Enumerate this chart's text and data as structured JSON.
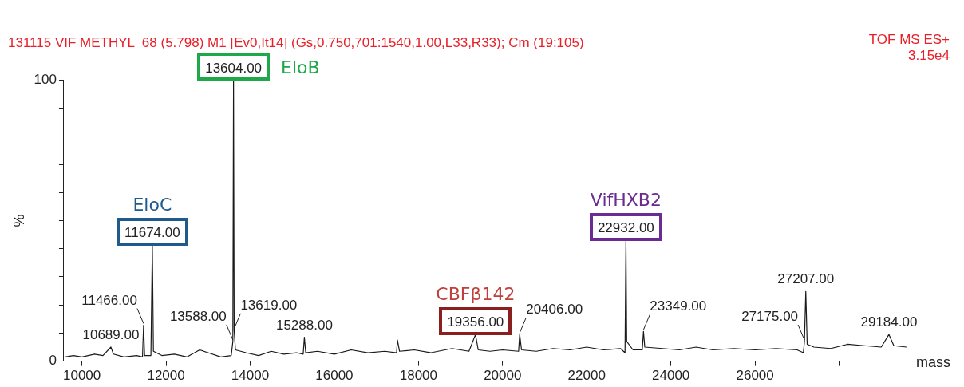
{
  "chart_data": {
    "type": "line",
    "title": "131115 VIF METHYL  68 (5.798) M1 [Ev0,It14] (Gs,0.750,701:1540,1.00,L33,R33); Cm (19:105)",
    "xlabel": "mass",
    "ylabel": "%",
    "xlim": [
      9570,
      29640
    ],
    "xticks": [
      10000,
      12000,
      14000,
      16000,
      18000,
      20000,
      22000,
      24000,
      26000,
      {
        "value": 28000,
        "label": null
      }
    ],
    "ylim": [
      0,
      100
    ],
    "yticks": [
      0,
      {
        "value": 10,
        "label": null
      },
      {
        "value": 20,
        "label": null
      },
      {
        "value": 30,
        "label": null
      },
      {
        "value": 40,
        "label": null
      },
      {
        "value": 50,
        "label": null
      },
      {
        "value": 60,
        "label": null
      },
      {
        "value": 70,
        "label": null
      },
      {
        "value": 80,
        "label": null
      },
      {
        "value": 90,
        "label": null
      },
      100
    ],
    "grid": false,
    "legend": false,
    "marker": "none",
    "x": [
      9600,
      9800,
      10000,
      10300,
      10500,
      10689,
      10750,
      11000,
      11300,
      11440,
      11466,
      11490,
      11640,
      11674,
      11700,
      11900,
      12200,
      12500,
      12800,
      13000,
      13300,
      13550,
      13588,
      13604,
      13619,
      13650,
      13900,
      14200,
      14500,
      14800,
      15100,
      15260,
      15288,
      15320,
      15600,
      16000,
      16400,
      16800,
      17200,
      17480,
      17500,
      17550,
      17900,
      18300,
      18800,
      19200,
      19356,
      19420,
      19700,
      20000,
      20380,
      20406,
      20450,
      20800,
      21200,
      21600,
      22000,
      22400,
      22800,
      22910,
      22932,
      22950,
      23100,
      23320,
      23349,
      23380,
      23800,
      24200,
      24600,
      25000,
      25500,
      26000,
      26500,
      27000,
      27150,
      27175,
      27207,
      27240,
      27400,
      27800,
      28200,
      28600,
      29000,
      29184,
      29300,
      29600
    ],
    "series": [
      {
        "color": "#1a1a1a",
        "values": [
          1.5,
          2,
          1.5,
          2.5,
          2,
          5,
          2.5,
          1.5,
          2,
          1.5,
          12.8,
          2,
          2,
          41.4,
          3.5,
          2,
          2.5,
          1.5,
          4,
          3,
          1.5,
          2,
          7,
          100,
          11,
          4,
          3,
          2,
          3.5,
          2.5,
          3,
          2.5,
          8.5,
          3,
          3.5,
          2.5,
          4,
          3,
          3.5,
          3,
          7.5,
          3.5,
          4,
          3,
          4.5,
          3.5,
          9.5,
          4,
          3.5,
          4,
          3.5,
          9.5,
          4,
          3.5,
          4.5,
          4,
          5,
          4,
          4.5,
          3,
          43,
          7,
          4,
          4,
          10.6,
          5,
          4.5,
          4,
          5,
          4,
          4.5,
          4,
          4.5,
          4,
          3,
          7,
          24.8,
          6,
          5,
          4.5,
          6,
          5.5,
          5,
          9.5,
          5.5,
          5
        ]
      }
    ],
    "annotations": [
      "TOF MS ES+",
      "3.15e4",
      {
        "text": "10689.00",
        "x": 10689,
        "y": 5
      },
      {
        "text": "11466.00",
        "x": 11466,
        "y": 12.8
      },
      {
        "text": "11674.00",
        "x": 11674,
        "y": 41.4
      },
      {
        "text": "13588.00",
        "x": 13588,
        "y": 7
      },
      {
        "text": "13604.00",
        "x": 13604,
        "y": 100
      },
      {
        "text": "13619.00",
        "x": 13619,
        "y": 11
      },
      {
        "text": "15288.00",
        "x": 15288,
        "y": 8.5
      },
      {
        "text": "19356.00",
        "x": 19356,
        "y": 9.5
      },
      {
        "text": "20406.00",
        "x": 20406,
        "y": 9.5
      },
      {
        "text": "22932.00",
        "x": 22932,
        "y": 43
      },
      {
        "text": "23349.00",
        "x": 23349,
        "y": 10.6
      },
      {
        "text": "27175.00",
        "x": 27175,
        "y": 7
      },
      {
        "text": "27207.00",
        "x": 27207,
        "y": 24.8
      },
      {
        "text": "29184.00",
        "x": 29184,
        "y": 9.5
      },
      {
        "text": "EloC",
        "x": 11674,
        "y": 41.4
      },
      {
        "text": "EloB",
        "x": 13604,
        "y": 100
      },
      {
        "text": "CBFβ142",
        "x": 19356,
        "y": 9.5
      },
      {
        "text": "VifHXB2",
        "x": 22932,
        "y": 43
      }
    ]
  }
}
